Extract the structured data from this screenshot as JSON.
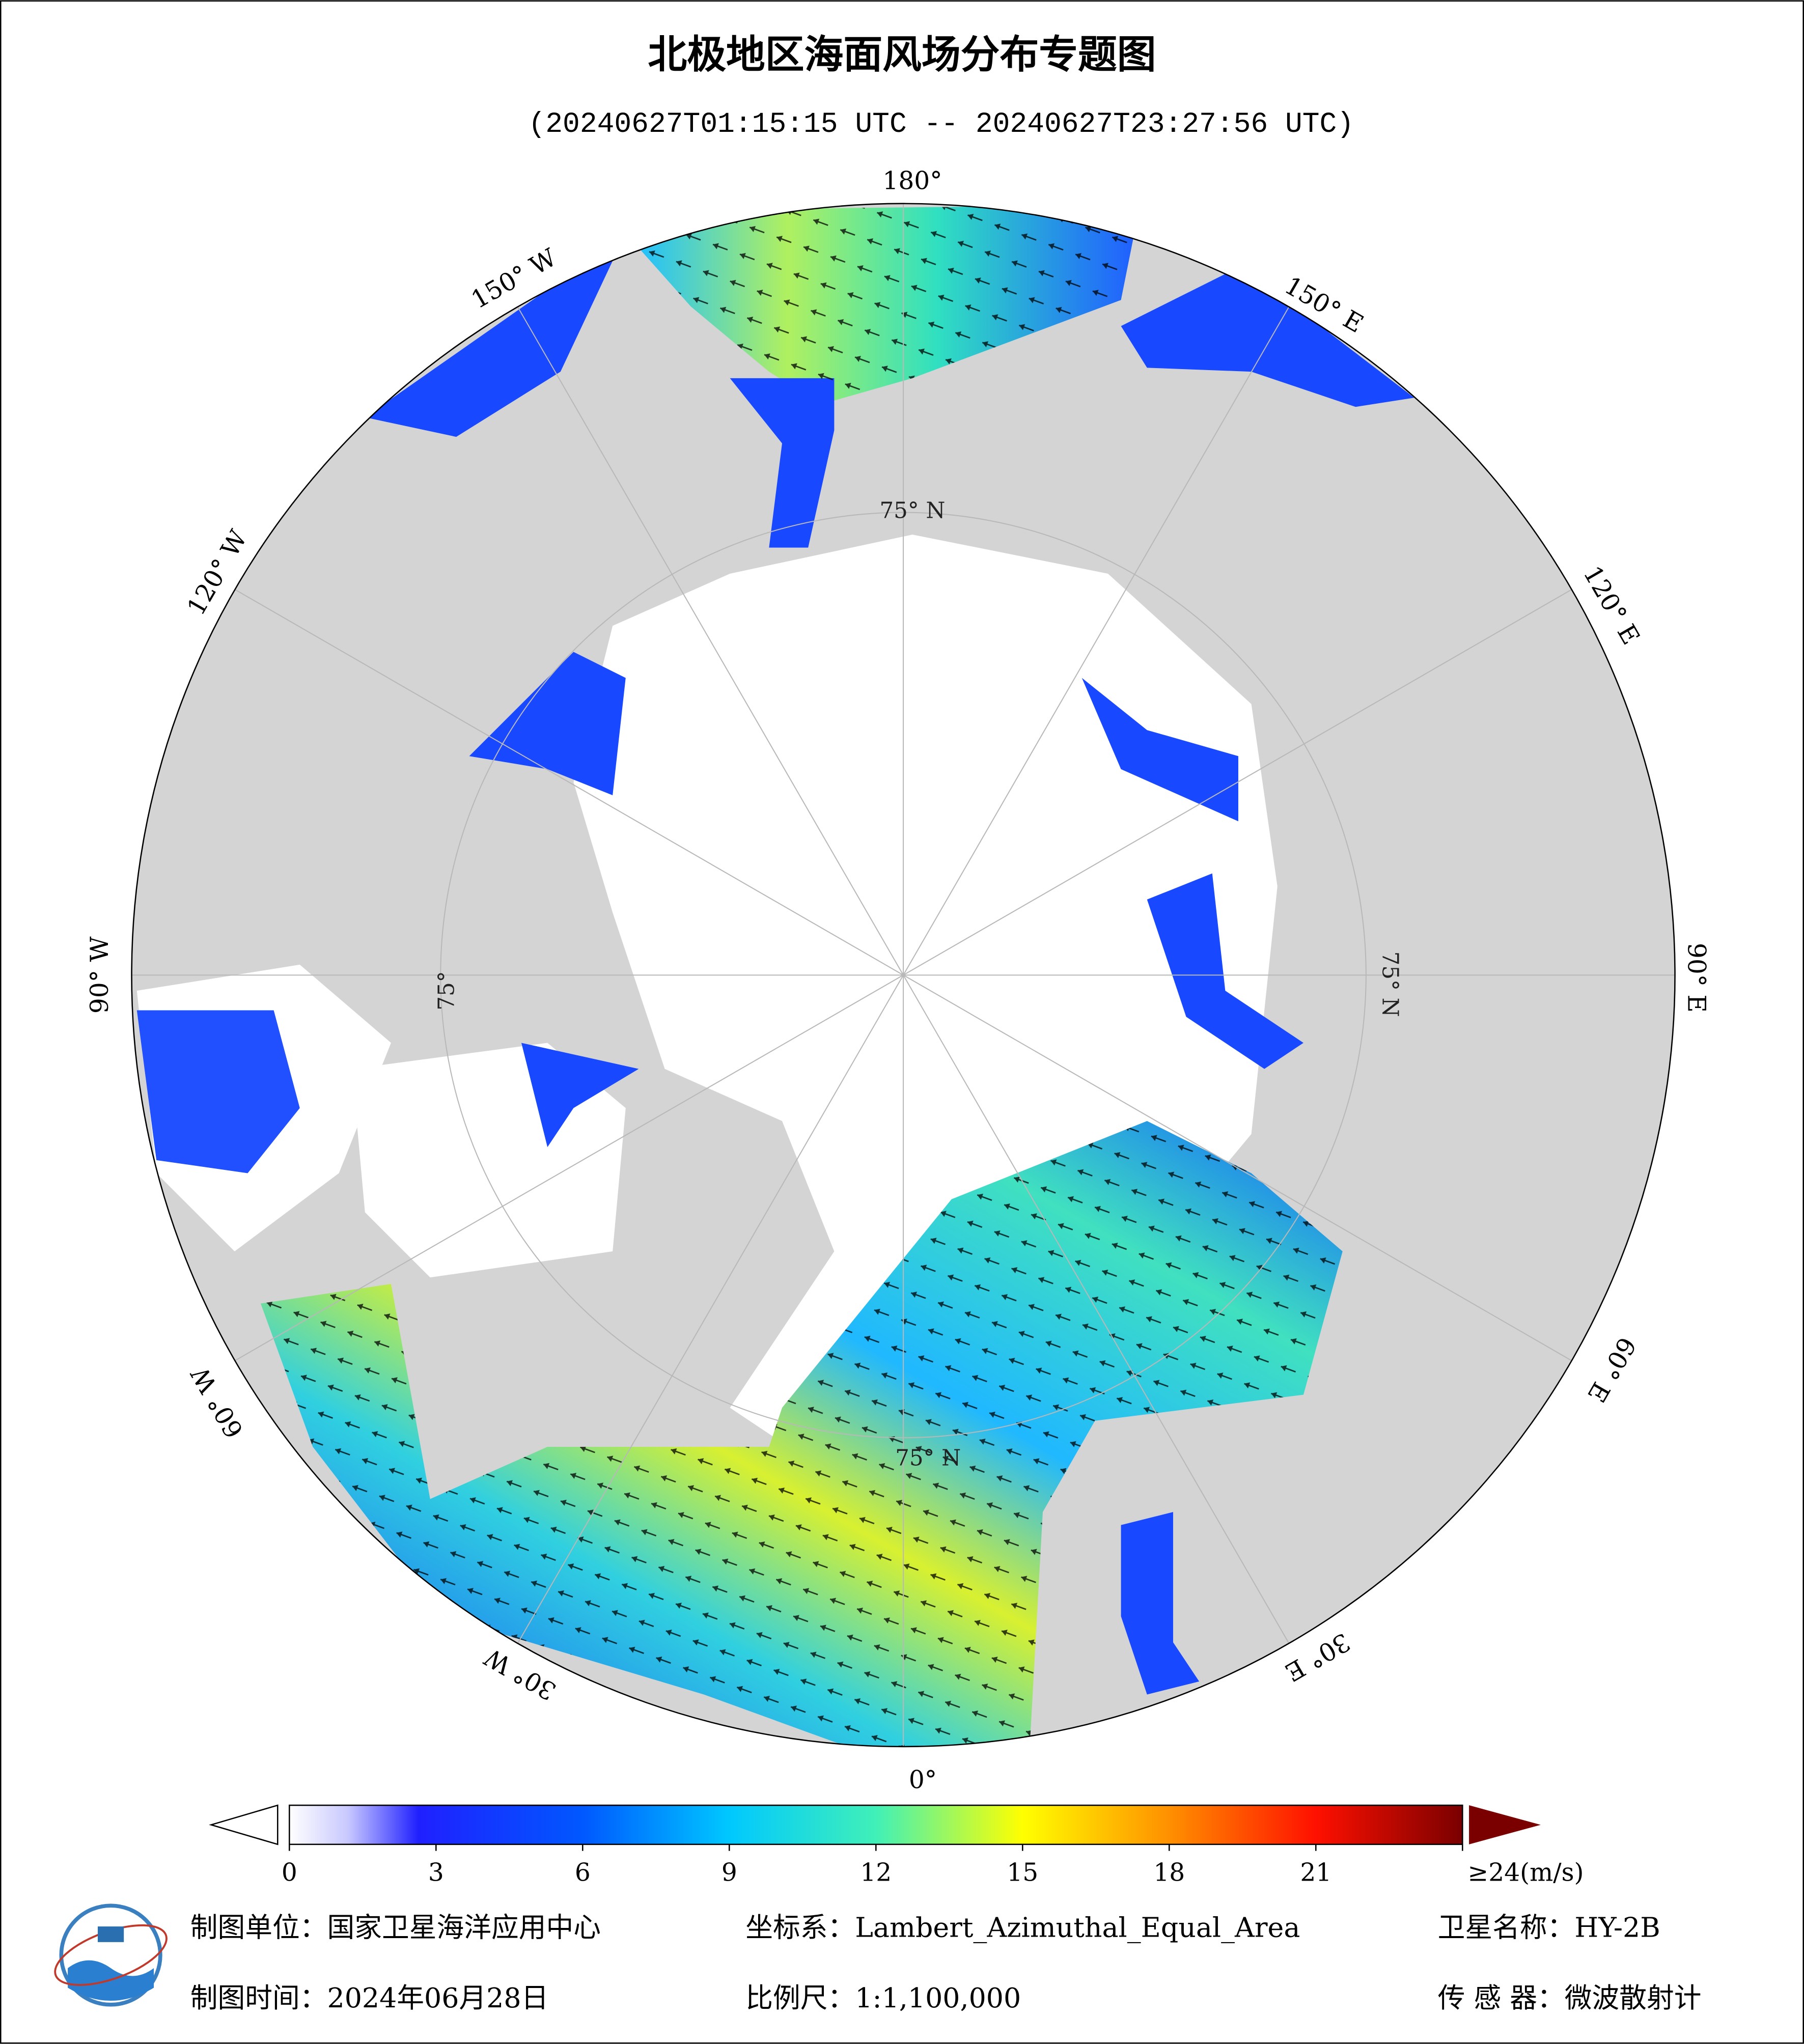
{
  "header": {
    "title": "北极地区海面风场分布专题图",
    "subtitle": "(20240627T01:15:15 UTC -- 20240627T23:27:56 UTC)"
  },
  "map": {
    "longitude_labels": [
      "180°",
      "150° E",
      "120° E",
      "90° E",
      "60° E",
      "30° E",
      "0°",
      "30° W",
      "60° W",
      "90° W",
      "120° W",
      "150° W"
    ],
    "latitude_labels": [
      "75° N",
      "75° N",
      "75° N",
      "75°"
    ]
  },
  "colorbar": {
    "range": [
      0,
      24
    ],
    "ticks": [
      0,
      3,
      6,
      9,
      12,
      15,
      18,
      21,
      {
        "value": 24,
        "label": "≥24(m/s)"
      }
    ]
  },
  "footer": {
    "items": [
      "制图单位：国家卫星海洋应用中心",
      "坐标系：Lambert_Azimuthal_Equal_Area",
      "卫星名称：HY-2B",
      "制图时间：2024年06月28日",
      "比例尺：1:1,100,000",
      "传 感 器：微波散射计"
    ]
  }
}
